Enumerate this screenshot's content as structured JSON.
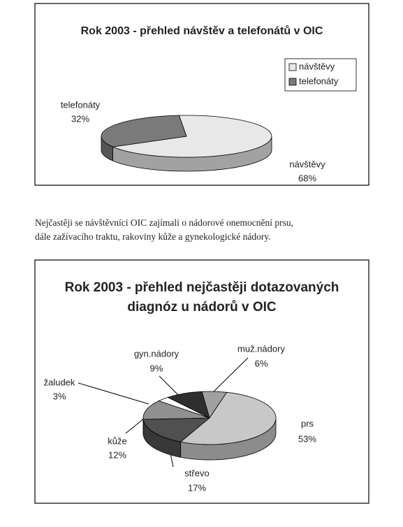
{
  "chart_data": [
    {
      "type": "pie",
      "title": "Rok 2003 - přehled návštěv a telefonátů v OIC",
      "categories": [
        "návštěvy",
        "telefonáty"
      ],
      "values": [
        68,
        32
      ],
      "value_labels": [
        "68%",
        "32%"
      ],
      "colors": [
        "#e8e8e8",
        "#7a7a7a"
      ],
      "legend": "right"
    },
    {
      "type": "pie",
      "title": [
        "Rok 2003 - přehled nejčastěji dotazovaných",
        "diagnóz u nádorů v OIC"
      ],
      "categories": [
        "prs",
        "střevo",
        "kůže",
        "žaludek",
        "gyn.nádory",
        "muž.nádory"
      ],
      "values": [
        53,
        17,
        12,
        3,
        9,
        6
      ],
      "value_labels": [
        "53%",
        "17%",
        "12%",
        "3%",
        "9%",
        "6%"
      ],
      "colors": [
        "#c8c8c8",
        "#505050",
        "#909090",
        "#ffffff",
        "#2e2e2e",
        "#a0a0a0"
      ]
    }
  ],
  "text": [
    "Nejčastěji se návštěvníci OIC zajímali o nádorové onemocnění prsu,",
    "dále zažívacího traktu, rakoviny kůže a gynekologické nádory."
  ]
}
